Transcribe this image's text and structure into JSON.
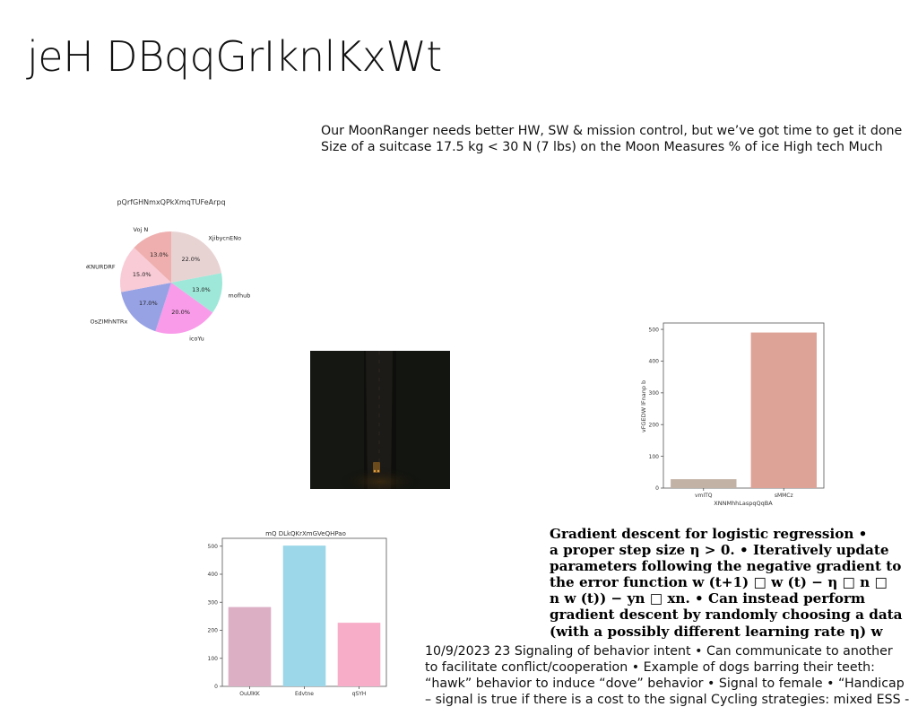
{
  "slide": {
    "title": "jeH DBqqGrIknlKxWt",
    "intro_lines": [
      "Our MoonRanger needs better HW, SW & mission control, but we’ve got time to get it done",
      "Size of a suitcase 17.5 kg < 30 N (7 lbs) on the Moon Measures % of ice High tech Much"
    ],
    "gradient_lines": [
      "Gradient descent for logistic regression •",
      "a proper step size η > 0. • Iteratively update",
      "parameters following the negative gradient to",
      "the error function w (t+1) □ w (t) − η □ n □",
      "n w (t)) − yn □ xn. • Can instead perform",
      "gradient descent by randomly choosing a data",
      "(with a possibly different learning rate η) w"
    ],
    "signal_lines": [
      "10/9/2023 23 Signaling of behavior intent • Can communicate to another",
      "to facilitate conflict/cooperation • Example of dogs barring their teeth:",
      "“hawk” behavior to induce “dove” behavior • Signal to female • “Handicap",
      "– signal is true if there is a cost to the signal Cycling strategies: mixed ESS -"
    ],
    "photo_icon": "night-road-photo"
  },
  "chart_data": [
    {
      "type": "pie",
      "title": "pQrfGHNmxQPkXmqTUFeArpq",
      "categories": [
        "XjibycnENo",
        "mofhub",
        "icoYu",
        "OsZIMhNTRx",
        "tpKNURDRF",
        "Voj N"
      ],
      "values": [
        22.0,
        13.0,
        20.0,
        17.0,
        15.0,
        13.0
      ],
      "labels": [
        "22.0%",
        "13.0%",
        "20.0%",
        "17.0%",
        "15.0%",
        "13.0%"
      ],
      "colors": [
        "#e8d3d3",
        "#9ee8d9",
        "#f99be9",
        "#97a2e5",
        "#f9cbd6",
        "#efafaf"
      ]
    },
    {
      "type": "bar",
      "title": "",
      "categories": [
        "vmITQ",
        "sMMCz"
      ],
      "values": [
        28,
        490
      ],
      "xlabel": "XNNMhhLaspqQqBA",
      "ylabel": "vFGEDW lFnanp b",
      "ylim": [
        0,
        520
      ],
      "yticks": [
        0,
        100,
        200,
        300,
        400,
        500
      ],
      "colors": [
        "#c2b2a5",
        "#dea397"
      ]
    },
    {
      "type": "bar",
      "title": "mQ DLkQKrXmGVeQHPao",
      "categories": [
        "OuUlKK",
        "Edvtne",
        "qSYH"
      ],
      "values": [
        283,
        502,
        227
      ],
      "xlabel": "",
      "ylabel": "",
      "ylim": [
        0,
        528
      ],
      "yticks": [
        0,
        100,
        200,
        300,
        400,
        500
      ],
      "colors": [
        "#dcafc5",
        "#9cd7e9",
        "#f7adc8"
      ]
    }
  ]
}
